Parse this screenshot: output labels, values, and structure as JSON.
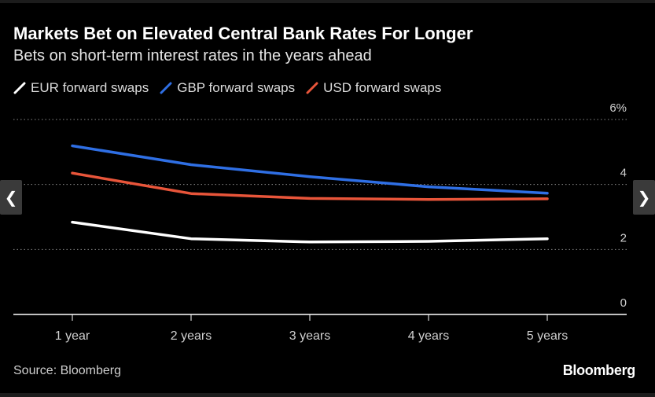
{
  "header": {
    "title": "Markets Bet on Elevated Central Bank Rates For Longer",
    "subtitle": "Bets on short-term interest rates in the years ahead"
  },
  "legend": [
    {
      "label": "EUR forward swaps",
      "color": "#ffffff"
    },
    {
      "label": "GBP forward swaps",
      "color": "#2f6fe4"
    },
    {
      "label": "USD forward swaps",
      "color": "#e8553a"
    }
  ],
  "footer": {
    "source": "Source: Bloomberg",
    "logo": "Bloomberg"
  },
  "nav": {
    "prev_icon": "chevron-left-icon",
    "next_icon": "chevron-right-icon"
  },
  "chart_data": {
    "type": "line",
    "title": "Markets Bet on Elevated Central Bank Rates For Longer",
    "subtitle": "Bets on short-term interest rates in the years ahead",
    "xlabel": "",
    "ylabel": "",
    "categories": [
      "1 year",
      "2 years",
      "3 years",
      "4 years",
      "5 years"
    ],
    "ylim": [
      0,
      6
    ],
    "yticks": [
      0,
      2,
      4,
      6
    ],
    "ytick_labels": [
      "0",
      "2",
      "4",
      "6%"
    ],
    "grid": "horizontal dotted",
    "legend_position": "top-left",
    "series": [
      {
        "name": "EUR forward swaps",
        "color": "#ffffff",
        "values": [
          2.84,
          2.33,
          2.23,
          2.25,
          2.33
        ]
      },
      {
        "name": "GBP forward swaps",
        "color": "#2f6fe4",
        "values": [
          5.19,
          4.61,
          4.24,
          3.93,
          3.73
        ]
      },
      {
        "name": "USD forward swaps",
        "color": "#e8553a",
        "values": [
          4.35,
          3.72,
          3.57,
          3.54,
          3.56
        ]
      }
    ]
  }
}
